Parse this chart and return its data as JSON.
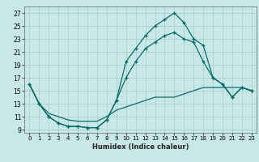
{
  "xlabel": "Humidex (Indice chaleur)",
  "ylabel": "",
  "background_color": "#c8e8e8",
  "grid_color": "#aad0d0",
  "line_color": "#006666",
  "xlim": [
    -0.5,
    23.5
  ],
  "ylim": [
    8.5,
    28
  ],
  "xticks": [
    0,
    1,
    2,
    3,
    4,
    5,
    6,
    7,
    8,
    9,
    10,
    11,
    12,
    13,
    14,
    15,
    16,
    17,
    18,
    19,
    20,
    21,
    22,
    23
  ],
  "yticks": [
    9,
    11,
    13,
    15,
    17,
    19,
    21,
    23,
    25,
    27
  ],
  "line1_x": [
    0,
    1,
    2,
    3,
    4,
    5,
    6,
    7,
    8,
    9,
    10,
    11,
    12,
    13,
    14,
    15,
    16,
    17,
    18,
    19,
    20,
    21,
    22,
    23
  ],
  "line1_y": [
    16,
    13,
    11,
    10,
    9.5,
    9.5,
    9.3,
    9.3,
    10.5,
    13.5,
    19.5,
    21.5,
    23.5,
    25,
    26,
    27,
    25.5,
    23,
    22,
    17,
    16,
    14,
    15.5,
    15
  ],
  "line2_x": [
    0,
    1,
    2,
    3,
    4,
    5,
    6,
    7,
    8,
    9,
    10,
    11,
    12,
    13,
    14,
    15,
    16,
    17,
    18,
    19,
    20,
    21,
    22,
    23
  ],
  "line2_y": [
    16,
    13,
    11,
    10,
    9.5,
    9.5,
    9.3,
    9.3,
    10.5,
    13.5,
    17,
    19.5,
    21.5,
    22.5,
    23.5,
    24,
    23,
    22.5,
    19.5,
    17,
    16,
    14,
    15.5,
    15
  ],
  "line3_x": [
    0,
    1,
    2,
    3,
    4,
    5,
    6,
    7,
    8,
    9,
    10,
    11,
    12,
    13,
    14,
    15,
    16,
    17,
    18,
    19,
    20,
    21,
    22,
    23
  ],
  "line3_y": [
    16,
    13,
    11.5,
    11,
    10.5,
    10.3,
    10.3,
    10.3,
    11,
    12,
    12.5,
    13,
    13.5,
    14,
    14,
    14,
    14.5,
    15,
    15.5,
    15.5,
    15.5,
    15.5,
    15.5,
    15
  ]
}
